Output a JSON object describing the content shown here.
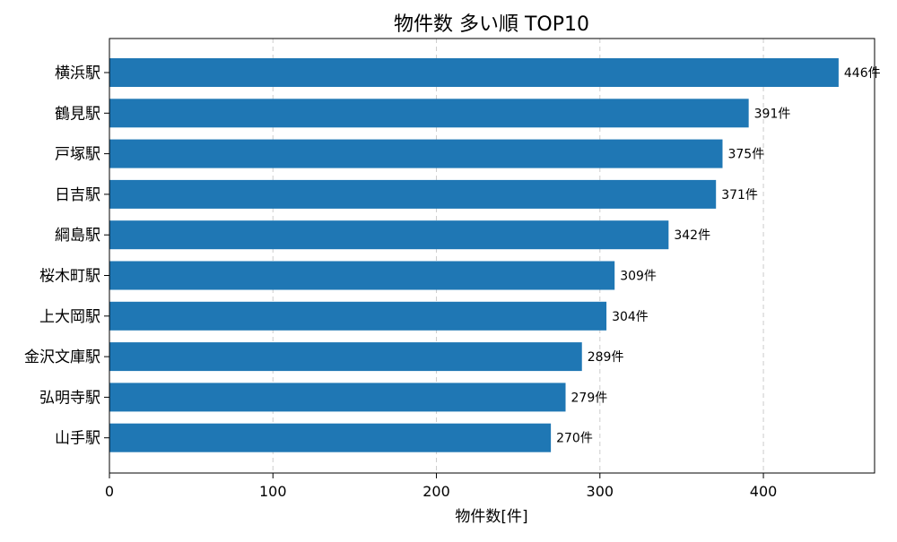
{
  "chart_data": {
    "type": "bar",
    "orientation": "horizontal",
    "title": "物件数 多い順 TOP10",
    "xlabel": "物件数[件]",
    "ylabel": "",
    "categories": [
      "横浜駅",
      "鶴見駅",
      "戸塚駅",
      "日吉駅",
      "綱島駅",
      "桜木町駅",
      "上大岡駅",
      "金沢文庫駅",
      "弘明寺駅",
      "山手駅"
    ],
    "values": [
      446,
      391,
      375,
      371,
      342,
      309,
      304,
      289,
      279,
      270
    ],
    "value_labels": [
      "446件",
      "391件",
      "375件",
      "371件",
      "342件",
      "309件",
      "304件",
      "289件",
      "279件",
      "270件"
    ],
    "xlim": [
      0,
      468
    ],
    "x_ticks": [
      0,
      100,
      200,
      300,
      400
    ],
    "x_tick_labels": [
      "0",
      "100",
      "200",
      "300",
      "400"
    ],
    "grid": {
      "x": true,
      "y": false,
      "style": "dashed"
    },
    "legend": "none",
    "bar_color": "#1f77b4"
  }
}
